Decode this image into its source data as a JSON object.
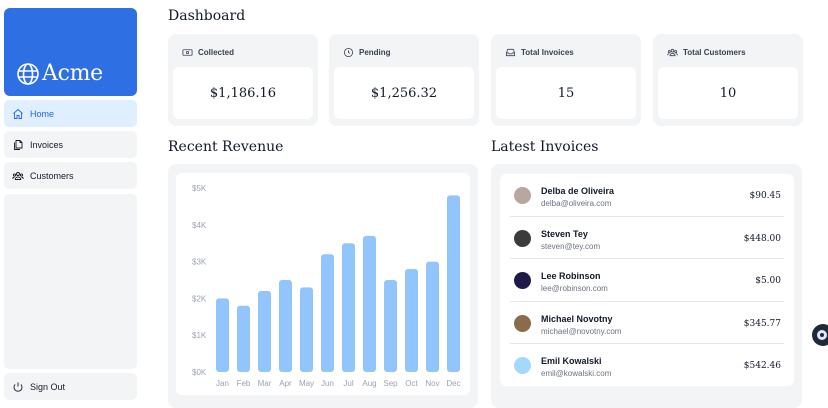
{
  "brand": {
    "name": "Acme"
  },
  "sidebar": {
    "items": [
      {
        "label": "Home",
        "icon": "home-icon",
        "active": true
      },
      {
        "label": "Invoices",
        "icon": "documents-icon",
        "active": false
      },
      {
        "label": "Customers",
        "icon": "users-icon",
        "active": false
      }
    ],
    "sign_out": "Sign Out"
  },
  "page": {
    "title": "Dashboard"
  },
  "cards": [
    {
      "title": "Collected",
      "value": "$1,186.16",
      "icon": "banknotes-icon"
    },
    {
      "title": "Pending",
      "value": "$1,256.32",
      "icon": "clock-icon"
    },
    {
      "title": "Total Invoices",
      "value": "15",
      "icon": "inbox-icon"
    },
    {
      "title": "Total Customers",
      "value": "10",
      "icon": "users-icon"
    }
  ],
  "revenue": {
    "title": "Recent Revenue"
  },
  "chart_data": {
    "type": "bar",
    "categories": [
      "Jan",
      "Feb",
      "Mar",
      "Apr",
      "May",
      "Jun",
      "Jul",
      "Aug",
      "Sep",
      "Oct",
      "Nov",
      "Dec"
    ],
    "values": [
      2000,
      1800,
      2200,
      2500,
      2300,
      3200,
      3500,
      3700,
      2500,
      2800,
      3000,
      4800
    ],
    "y_ticks": [
      "$0K",
      "$1K",
      "$2K",
      "$3K",
      "$4K",
      "$5K"
    ],
    "ylim": [
      0,
      5000
    ],
    "bar_color": "#93c5fd",
    "grid": false
  },
  "invoices": {
    "title": "Latest Invoices",
    "rows": [
      {
        "name": "Delba de Oliveira",
        "email": "delba@oliveira.com",
        "amount": "$90.45",
        "avatar_color": "#b7a7a0"
      },
      {
        "name": "Steven Tey",
        "email": "steven@tey.com",
        "amount": "$448.00",
        "avatar_color": "#3b3b3b"
      },
      {
        "name": "Lee Robinson",
        "email": "lee@robinson.com",
        "amount": "$5.00",
        "avatar_color": "#1e1b4b"
      },
      {
        "name": "Michael Novotny",
        "email": "michael@novotny.com",
        "amount": "$345.77",
        "avatar_color": "#8b6b4e"
      },
      {
        "name": "Emil Kowalski",
        "email": "emil@kowalski.com",
        "amount": "$542.46",
        "avatar_color": "#a5d8ff"
      }
    ]
  },
  "colors": {
    "brand": "#2f6fe4",
    "active_nav_bg": "#e0efff",
    "active_nav_text": "#2563eb",
    "panel_bg": "#f3f4f6"
  }
}
